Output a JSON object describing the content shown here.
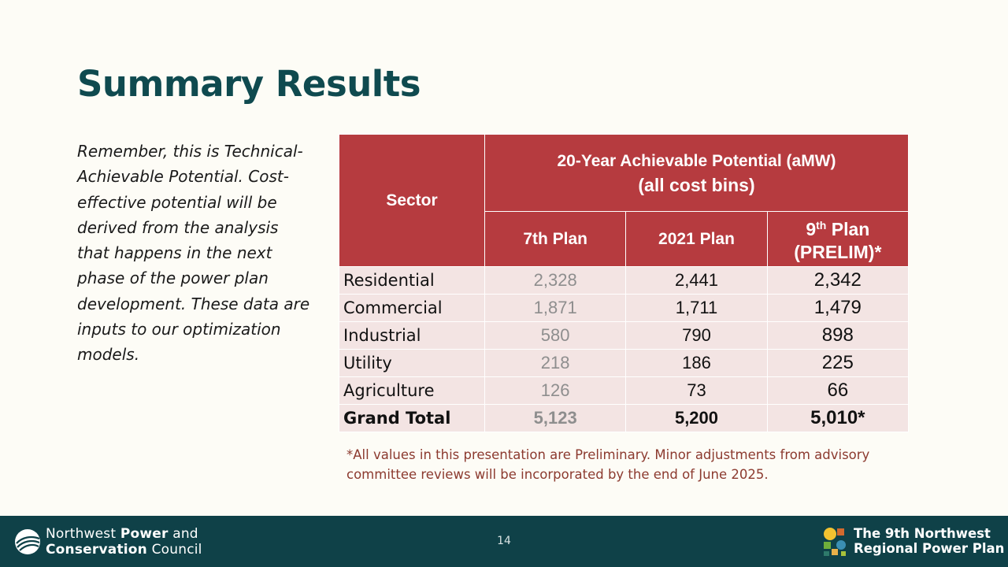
{
  "slide": {
    "title": "Summary Results",
    "note": "Remember, this is Technical-Achievable Potential. Cost-effective potential will be derived from the analysis that happens in the next phase of the power plan development. These data are inputs to our optimization models.",
    "footnote": "*All values in this presentation are Preliminary. Minor adjustments from advisory committee reviews will be incorporated by the end of June 2025."
  },
  "table": {
    "sector_header": "Sector",
    "group_header_line1": "20-Year Achievable Potential (aMW)",
    "group_header_line2": "(all cost bins)",
    "col_7th": "7th Plan",
    "col_2021": "2021 Plan",
    "col_9th_prefix": "9",
    "col_9th_sup": "th",
    "col_9th_suffix": " Plan",
    "col_9th_line2": "(PRELIM)*",
    "rows": [
      {
        "sector": "Residential",
        "p7": "2,328",
        "p2021": "2,441",
        "p9": "2,342"
      },
      {
        "sector": "Commercial",
        "p7": "1,871",
        "p2021": "1,711",
        "p9": "1,479"
      },
      {
        "sector": "Industrial",
        "p7": "580",
        "p2021": "790",
        "p9": "898"
      },
      {
        "sector": "Utility",
        "p7": "218",
        "p2021": "186",
        "p9": "225"
      },
      {
        "sector": "Agriculture",
        "p7": "126",
        "p2021": "73",
        "p9": "66"
      }
    ],
    "total": {
      "sector": "Grand Total",
      "p7": "5,123",
      "p2021": "5,200",
      "p9": "5,010*"
    }
  },
  "footer": {
    "org_line1_a": "Northwest ",
    "org_line1_b": "Power",
    "org_line1_c": " and",
    "org_line2_a": "Conservation",
    "org_line2_b": " Council",
    "page_number": "14",
    "plan_line1": "The 9th Northwest",
    "plan_line2": "Regional Power Plan",
    "org_logo_icon": "nwpcc-swoosh-logo-icon",
    "plan_logo_icon": "power-plan-mosaic-logo-icon"
  },
  "colors": {
    "title": "#0f4a4f",
    "table_header": "#b63b3f",
    "table_row": "#f3e4e3",
    "footer_bg": "#0f4148",
    "footnote": "#8c3a2f"
  }
}
